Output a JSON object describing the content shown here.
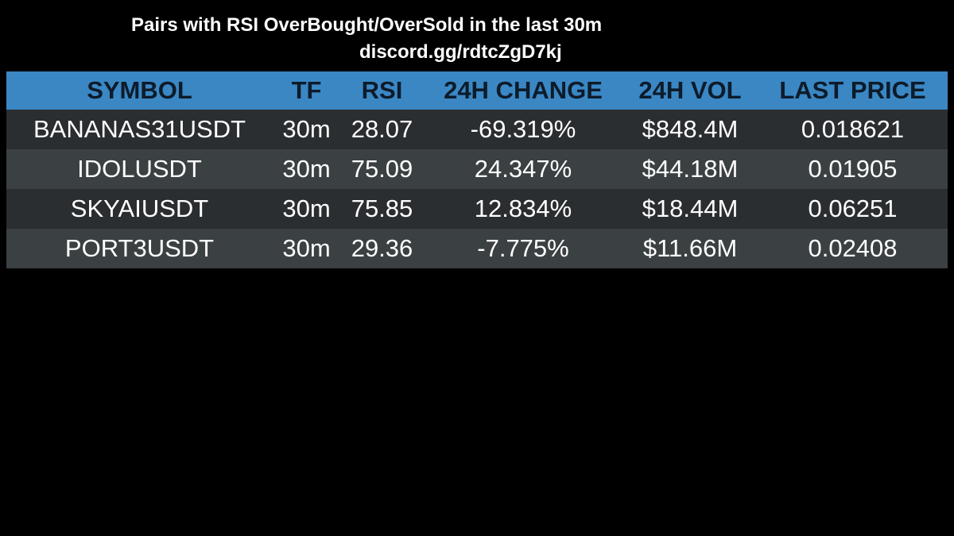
{
  "header": {
    "title": "Pairs with RSI OverBought/OverSold in the last 30m",
    "subtitle": "discord.gg/rdtcZgD7kj"
  },
  "table": {
    "columns": [
      "SYMBOL",
      "TF",
      "RSI",
      "24H CHANGE",
      "24H VOL",
      "LAST PRICE"
    ],
    "rows": [
      [
        "BANANAS31USDT",
        "30m",
        "28.07",
        "-69.319%",
        "$848.4M",
        "0.018621"
      ],
      [
        "IDOLUSDT",
        "30m",
        "75.09",
        "24.347%",
        "$44.18M",
        "0.01905"
      ],
      [
        "SKYAIUSDT",
        "30m",
        "75.85",
        "12.834%",
        "$18.44M",
        "0.06251"
      ],
      [
        "PORT3USDT",
        "30m",
        "29.36",
        "-7.775%",
        "$11.66M",
        "0.02408"
      ]
    ]
  }
}
